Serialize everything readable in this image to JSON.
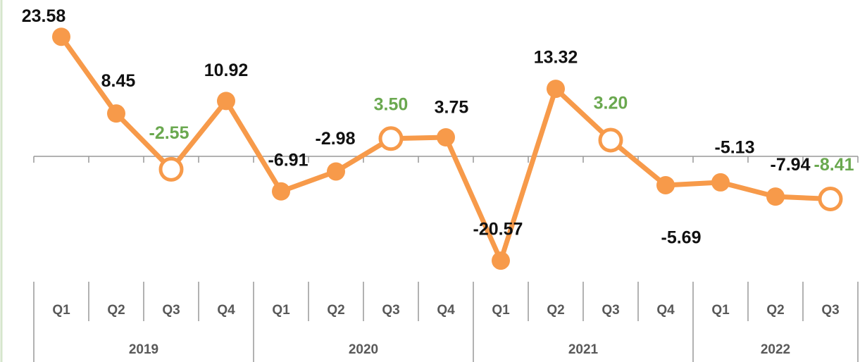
{
  "chart_data": {
    "type": "line",
    "categories": [
      "Q1",
      "Q2",
      "Q3",
      "Q4",
      "Q1",
      "Q2",
      "Q3",
      "Q4",
      "Q1",
      "Q2",
      "Q3",
      "Q4",
      "Q1",
      "Q2",
      "Q3"
    ],
    "x_groups": [
      {
        "label": "2019",
        "count": 4
      },
      {
        "label": "2020",
        "count": 4
      },
      {
        "label": "2021",
        "count": 4
      },
      {
        "label": "2022",
        "count": 3
      }
    ],
    "series": [
      {
        "color": "#f79a4a",
        "values": [
          23.58,
          8.45,
          -2.55,
          10.92,
          -6.91,
          -2.98,
          3.5,
          3.75,
          -20.57,
          13.32,
          3.2,
          -5.69,
          -5.13,
          -7.94,
          -8.41
        ],
        "value_labels": [
          "23.58",
          "8.45",
          "-2.55",
          "10.92",
          "-6.91",
          "-2.98",
          "3.50",
          "3.75",
          "-20.57",
          "13.32",
          "3.20",
          "-5.69",
          "-5.13",
          "-7.94",
          "-8.41"
        ]
      }
    ],
    "highlight": {
      "category": "Q3",
      "label_color": "#6aa84f",
      "marker": "hollow"
    },
    "ylim": [
      -25,
      27
    ]
  }
}
